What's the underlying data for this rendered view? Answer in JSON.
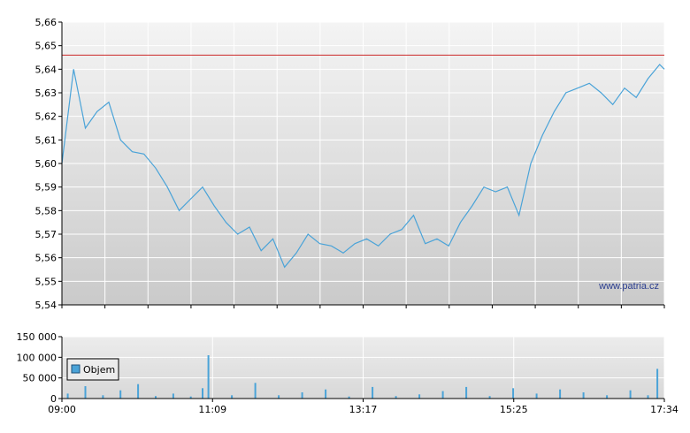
{
  "price_chart": {
    "y_ticks": [
      "5,54",
      "5,55",
      "5,56",
      "5,57",
      "5,58",
      "5,59",
      "5,60",
      "5,61",
      "5,62",
      "5,63",
      "5,64",
      "5,65",
      "5,66"
    ],
    "watermark": "www.patria.cz",
    "reference_line_value": 5.646
  },
  "volume_chart": {
    "y_ticks": [
      "0",
      "50 000",
      "100 000",
      "150 000"
    ],
    "legend_label": "Objem"
  },
  "x_ticks": [
    "09:00",
    "11:09",
    "13:17",
    "15:25",
    "17:34"
  ],
  "colors": {
    "price_line": "#4aa3d8",
    "reference_line": "#cc2a2a",
    "volume_bar": "#4aa3d8",
    "grid": "#ffffff"
  },
  "chart_data": [
    {
      "type": "line",
      "series": [
        {
          "x": [
            "09:00",
            "09:10",
            "09:20",
            "09:30",
            "09:40",
            "09:50",
            "10:00",
            "10:10",
            "10:20",
            "10:30",
            "10:40",
            "10:50",
            "11:00",
            "11:10",
            "11:20",
            "11:30",
            "11:40",
            "11:50",
            "12:00",
            "12:10",
            "12:20",
            "12:30",
            "12:40",
            "12:50",
            "13:00",
            "13:10",
            "13:20",
            "13:30",
            "13:40",
            "13:50",
            "14:00",
            "14:10",
            "14:20",
            "14:30",
            "14:40",
            "14:50",
            "15:00",
            "15:10",
            "15:20",
            "15:30",
            "15:40",
            "15:50",
            "16:00",
            "16:10",
            "16:20",
            "16:30",
            "16:40",
            "16:50",
            "17:00",
            "17:10",
            "17:20",
            "17:30",
            "17:34"
          ],
          "values": [
            5.6,
            5.64,
            5.615,
            5.622,
            5.626,
            5.61,
            5.605,
            5.604,
            5.598,
            5.59,
            5.58,
            5.585,
            5.59,
            5.582,
            5.575,
            5.57,
            5.573,
            5.563,
            5.568,
            5.556,
            5.562,
            5.57,
            5.566,
            5.565,
            5.562,
            5.566,
            5.568,
            5.565,
            5.57,
            5.572,
            5.578,
            5.566,
            5.568,
            5.565,
            5.575,
            5.582,
            5.59,
            5.588,
            5.59,
            5.578,
            5.6,
            5.612,
            5.622,
            5.63,
            5.632,
            5.634,
            5.63,
            5.625,
            5.632,
            5.628,
            5.636,
            5.642,
            5.64
          ]
        }
      ],
      "y_ticks": [
        5.54,
        5.55,
        5.56,
        5.57,
        5.58,
        5.59,
        5.6,
        5.61,
        5.62,
        5.63,
        5.64,
        5.65,
        5.66
      ],
      "ylim": [
        5.54,
        5.66
      ],
      "xlim": [
        "09:00",
        "17:34"
      ],
      "reference_line": 5.646,
      "grid": true
    },
    {
      "type": "bar",
      "series": [
        {
          "name": "Objem",
          "x": [
            "09:05",
            "09:20",
            "09:35",
            "09:50",
            "10:05",
            "10:20",
            "10:35",
            "10:50",
            "11:00",
            "11:05",
            "11:25",
            "11:45",
            "12:05",
            "12:25",
            "12:45",
            "13:05",
            "13:25",
            "13:45",
            "14:05",
            "14:25",
            "14:45",
            "15:05",
            "15:25",
            "15:45",
            "16:05",
            "16:25",
            "16:45",
            "17:05",
            "17:20",
            "17:28"
          ],
          "values": [
            12000,
            30000,
            8000,
            20000,
            35000,
            6000,
            12000,
            5000,
            25000,
            105000,
            8000,
            38000,
            8000,
            15000,
            22000,
            5000,
            28000,
            6000,
            10000,
            18000,
            28000,
            6000,
            25000,
            12000,
            22000,
            15000,
            8000,
            20000,
            8000,
            72000
          ]
        }
      ],
      "y_ticks": [
        0,
        50000,
        100000,
        150000
      ],
      "ylim": [
        0,
        150000
      ],
      "xlim": [
        "09:00",
        "17:34"
      ],
      "legend": "top-left",
      "grid": true
    }
  ]
}
